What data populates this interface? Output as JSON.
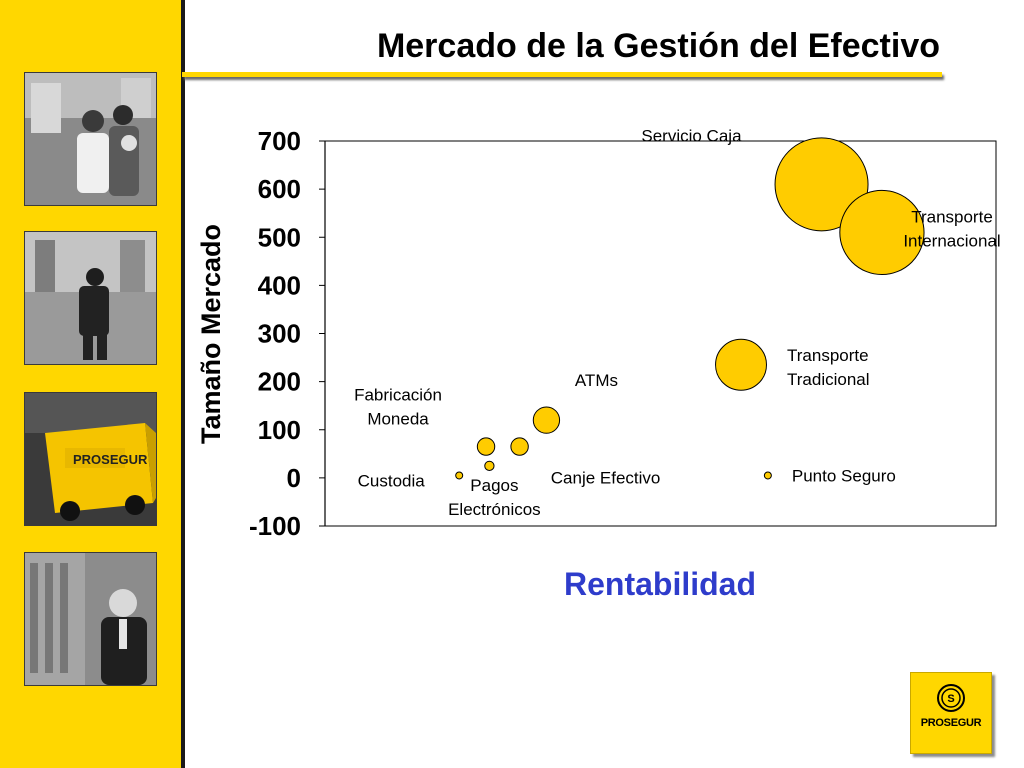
{
  "slide": {
    "title": "Mercado de la Gestión del Efectivo",
    "accent_color": "#FFD700",
    "logo_text": "PROSEGUR",
    "photos": [
      "family-photo",
      "guard-photo",
      "armored-truck-photo",
      "businessman-photo"
    ]
  },
  "chart_data": {
    "type": "bubble",
    "title": "",
    "xlabel": "Rentabilidad",
    "ylabel": "Tamaño Mercado",
    "ylim": [
      -100,
      700
    ],
    "y_ticks": [
      "700",
      "600",
      "500",
      "400",
      "300",
      "200",
      "100",
      "0",
      "-100"
    ],
    "x_ticks_shown": false,
    "bubble_color": "#FFCC00",
    "bubble_stroke": "#000000",
    "xlabel_color": "#2E3CCB",
    "series": [
      {
        "label": "Servicio Caja",
        "x": 0.74,
        "y": 610,
        "size": 100
      },
      {
        "label": "Transporte Internacional",
        "x": 0.83,
        "y": 510,
        "size": 82
      },
      {
        "label": "Transporte Tradicional",
        "x": 0.62,
        "y": 235,
        "size": 30
      },
      {
        "label": "ATMs",
        "x": 0.33,
        "y": 120,
        "size": 8
      },
      {
        "label": "Fabricación Moneda",
        "x": 0.24,
        "y": 65,
        "size": 3.5
      },
      {
        "label": "Canje Efectivo",
        "x": 0.29,
        "y": 65,
        "size": 3.5
      },
      {
        "label": "Pagos Electrónicos",
        "x": 0.245,
        "y": 25,
        "size": 1
      },
      {
        "label": "Custodia",
        "x": 0.2,
        "y": 5,
        "size": 0.3
      },
      {
        "label": "Punto Seguro",
        "x": 0.66,
        "y": 5,
        "size": 0.3
      }
    ]
  }
}
